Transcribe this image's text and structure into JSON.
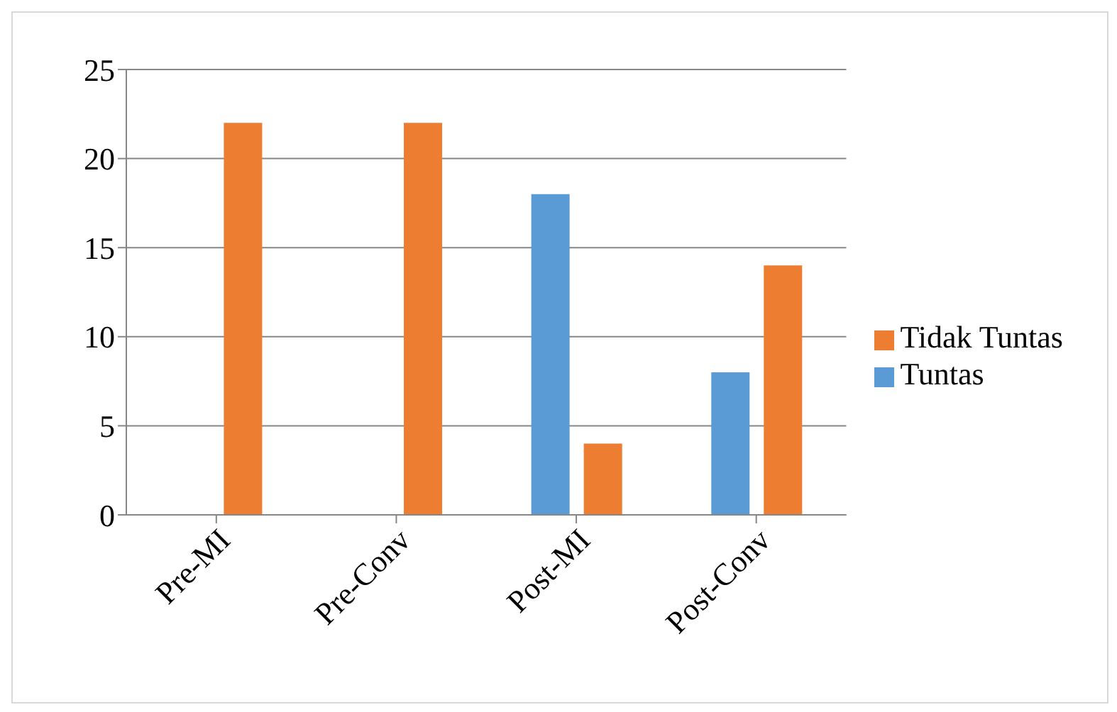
{
  "chart_data": {
    "type": "bar",
    "categories": [
      "Pre-MI",
      "Pre-Conv",
      "Post-MI",
      "Post-Conv"
    ],
    "series": [
      {
        "name": "Tuntas",
        "color": "#5b9bd5",
        "values": [
          0,
          0,
          18,
          8
        ]
      },
      {
        "name": "Tidak Tuntas",
        "color": "#ed7d31",
        "values": [
          22,
          22,
          4,
          14
        ]
      }
    ],
    "ylim": [
      0,
      25
    ],
    "yticks": [
      0,
      5,
      10,
      15,
      20,
      25
    ],
    "grid": "y",
    "legend": "right"
  }
}
